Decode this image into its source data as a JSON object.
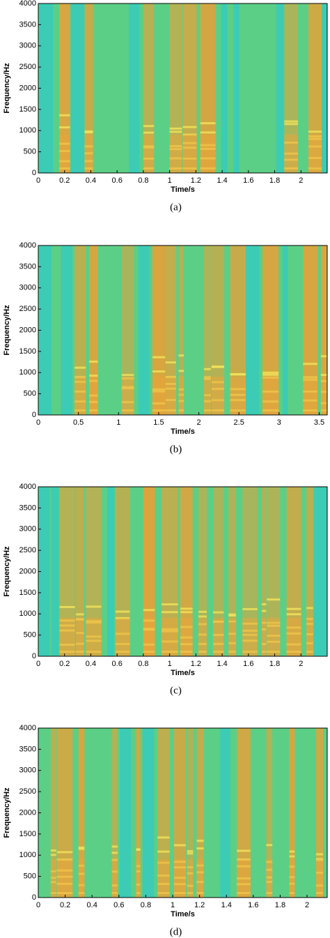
{
  "chart_data": [
    {
      "type": "spectrogram",
      "xlabel": "Time/s",
      "ylabel": "Frequency/Hz",
      "caption": "(a)",
      "xlim": [
        0,
        2.2
      ],
      "ylim": [
        0,
        4000
      ],
      "xticks": [
        0,
        0.2,
        0.4,
        0.6,
        0.8,
        1,
        1.2,
        1.4,
        1.6,
        1.8,
        2
      ],
      "yticks": [
        0,
        500,
        1000,
        1500,
        2000,
        2500,
        3000,
        3500,
        4000
      ]
    },
    {
      "type": "spectrogram",
      "xlabel": "Time/s",
      "ylabel": "Frequency/Hz",
      "caption": "(b)",
      "xlim": [
        0,
        3.6
      ],
      "ylim": [
        0,
        4000
      ],
      "xticks": [
        0,
        0.5,
        1,
        1.5,
        2,
        2.5,
        3,
        3.5
      ],
      "yticks": [
        0,
        500,
        1000,
        1500,
        2000,
        2500,
        3000,
        3500,
        4000
      ]
    },
    {
      "type": "spectrogram",
      "xlabel": "Time/s",
      "ylabel": "Frequency/Hz",
      "caption": "(c)",
      "xlim": [
        0,
        2.2
      ],
      "ylim": [
        0,
        4000
      ],
      "xticks": [
        0,
        0.2,
        0.4,
        0.6,
        0.8,
        1,
        1.2,
        1.4,
        1.6,
        1.8,
        2
      ],
      "yticks": [
        0,
        500,
        1000,
        1500,
        2000,
        2500,
        3000,
        3500,
        4000
      ]
    },
    {
      "type": "spectrogram",
      "xlabel": "Time/s",
      "ylabel": "Frequency/Hz",
      "caption": "(d)",
      "xlim": [
        0,
        2.15
      ],
      "ylim": [
        0,
        4000
      ],
      "xticks": [
        0,
        0.2,
        0.4,
        0.6,
        0.8,
        1,
        1.2,
        1.4,
        1.6,
        1.8,
        2
      ],
      "yticks": [
        0,
        500,
        1000,
        1500,
        2000,
        2500,
        3000,
        3500,
        4000
      ]
    }
  ]
}
